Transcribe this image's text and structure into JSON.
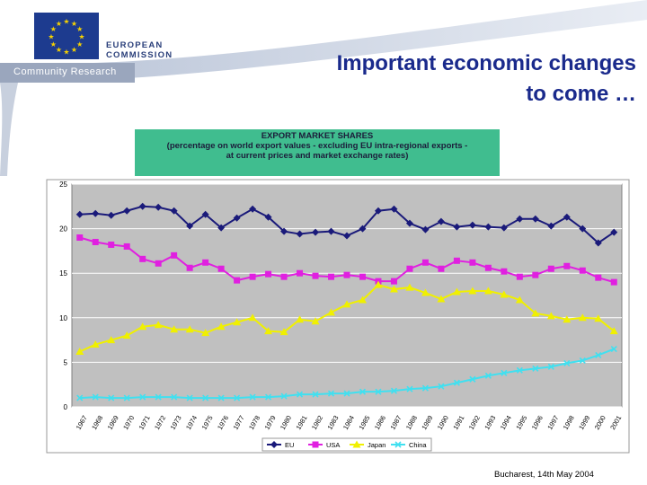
{
  "header": {
    "org_line1": "EUROPEAN",
    "org_line2": "COMMISSION",
    "community": "Community Research",
    "logo_icon": "eu-flag-icon"
  },
  "slide": {
    "title_line1": "Important economic changes",
    "title_line2": "to come …"
  },
  "chart_data": {
    "type": "line",
    "title_line1": "EXPORT MARKET SHARES",
    "title_line2": "(percentage on world export values - excluding EU intra-regional exports -",
    "title_line3": "at current prices and market exchange rates)",
    "x": [
      "1967",
      "1968",
      "1969",
      "1970",
      "1971",
      "1972",
      "1973",
      "1974",
      "1975",
      "1976",
      "1977",
      "1978",
      "1979",
      "1980",
      "1981",
      "1982",
      "1983",
      "1984",
      "1985",
      "1986",
      "1987",
      "1988",
      "1989",
      "1990",
      "1991",
      "1992",
      "1993",
      "1994",
      "1995",
      "1996",
      "1997",
      "1998",
      "1999",
      "2000",
      "2001"
    ],
    "ylim": [
      0,
      25
    ],
    "yticks": [
      "0",
      "5",
      "10",
      "15",
      "20",
      "25"
    ],
    "grid": true,
    "legend_position": "bottom",
    "plot_background": "#c0c0c0",
    "series": [
      {
        "name": "EU",
        "color": "#1a1a7a",
        "marker": "diamond",
        "values": [
          21.6,
          21.7,
          21.5,
          22.0,
          22.5,
          22.4,
          22.0,
          20.3,
          21.6,
          20.1,
          21.2,
          22.2,
          21.3,
          19.7,
          19.4,
          19.6,
          19.7,
          19.2,
          20.0,
          22.0,
          22.2,
          20.6,
          19.9,
          20.8,
          20.2,
          20.4,
          20.2,
          20.1,
          21.1,
          21.1,
          20.3,
          21.3,
          20.0,
          18.4,
          19.6
        ]
      },
      {
        "name": "USA",
        "color": "#e020e0",
        "marker": "square",
        "values": [
          19.0,
          18.5,
          18.2,
          18.0,
          16.6,
          16.1,
          17.0,
          15.6,
          16.2,
          15.5,
          14.2,
          14.6,
          14.9,
          14.6,
          15.0,
          14.7,
          14.6,
          14.8,
          14.6,
          14.1,
          14.1,
          15.5,
          16.2,
          15.5,
          16.4,
          16.2,
          15.6,
          15.2,
          14.6,
          14.8,
          15.5,
          15.8,
          15.3,
          14.5,
          14.0
        ]
      },
      {
        "name": "Japan",
        "color": "#f0f000",
        "marker": "triangle",
        "values": [
          6.2,
          7.0,
          7.5,
          8.0,
          9.0,
          9.2,
          8.7,
          8.7,
          8.3,
          9.0,
          9.5,
          10.0,
          8.5,
          8.4,
          9.8,
          9.6,
          10.6,
          11.5,
          12.0,
          13.7,
          13.2,
          13.4,
          12.8,
          12.1,
          12.9,
          13.0,
          13.0,
          12.6,
          12.0,
          10.5,
          10.2,
          9.8,
          10.0,
          9.9,
          8.5
        ]
      },
      {
        "name": "China",
        "color": "#40e0f0",
        "marker": "x",
        "values": [
          1.0,
          1.1,
          1.0,
          1.0,
          1.1,
          1.1,
          1.1,
          1.0,
          1.0,
          1.0,
          1.0,
          1.1,
          1.1,
          1.2,
          1.4,
          1.4,
          1.5,
          1.5,
          1.7,
          1.7,
          1.8,
          2.0,
          2.1,
          2.3,
          2.7,
          3.1,
          3.5,
          3.8,
          4.1,
          4.3,
          4.5,
          4.9,
          5.2,
          5.8,
          6.5
        ]
      }
    ]
  },
  "footer": {
    "text": "Bucharest, 14th May 2004"
  }
}
